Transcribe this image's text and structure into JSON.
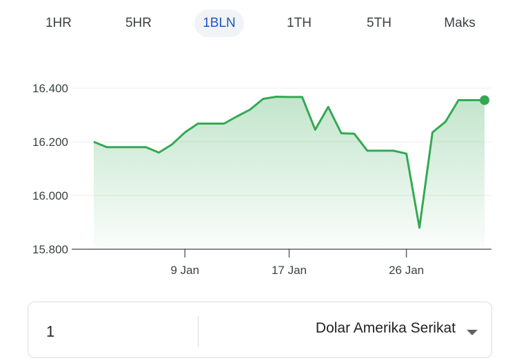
{
  "tabs": [
    {
      "label": "1HR",
      "active": false
    },
    {
      "label": "5HR",
      "active": false
    },
    {
      "label": "1BLN",
      "active": true
    },
    {
      "label": "1TH",
      "active": false
    },
    {
      "label": "5TH",
      "active": false
    },
    {
      "label": "Maks",
      "active": false
    }
  ],
  "chart_data": {
    "type": "area",
    "title": "",
    "xlabel": "",
    "ylabel": "",
    "ylim": [
      15800,
      16400
    ],
    "yticks": [
      "16.400",
      "16.200",
      "16.000",
      "15.800"
    ],
    "ytick_values": [
      16400,
      16200,
      16000,
      15800
    ],
    "xticks": [
      "9 Jan",
      "17 Jan",
      "26 Jan"
    ],
    "xtick_days": [
      9,
      17,
      26
    ],
    "grid": true,
    "color": "#34a853",
    "series": [
      {
        "x": [
          2,
          3,
          4,
          5,
          6,
          7,
          8,
          9,
          10,
          11,
          12,
          13,
          14,
          15,
          16,
          17,
          18,
          19,
          20,
          21,
          22,
          23,
          24,
          25,
          26,
          27,
          28,
          29,
          30,
          31,
          32
        ],
        "values": [
          16200,
          16180,
          16180,
          16180,
          16180,
          16160,
          16190,
          16235,
          16268,
          16268,
          16268,
          16295,
          16320,
          16360,
          16368,
          16367,
          16367,
          16245,
          16330,
          16232,
          16230,
          16167,
          16167,
          16167,
          16156,
          15880,
          16235,
          16275,
          16355,
          16355,
          16355
        ]
      }
    ]
  },
  "converter": {
    "amount": "1",
    "currency": "Dolar Amerika Serikat"
  }
}
